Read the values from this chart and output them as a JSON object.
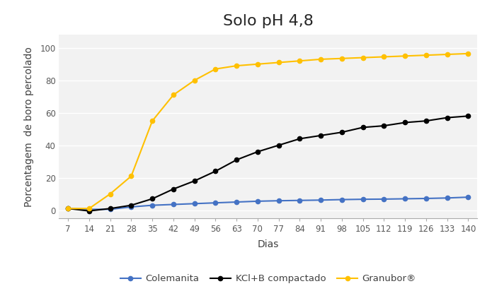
{
  "title": "Solo pH 4,8",
  "xlabel": "Dias",
  "ylabel": "Porcentagem  de boro percolado",
  "x": [
    7,
    14,
    21,
    28,
    35,
    42,
    49,
    56,
    63,
    70,
    77,
    84,
    91,
    98,
    105,
    112,
    119,
    126,
    133,
    140
  ],
  "colemanita": [
    1,
    0.5,
    0.5,
    2,
    3,
    3.5,
    4,
    4.5,
    5,
    5.5,
    5.8,
    6,
    6.2,
    6.5,
    6.7,
    6.8,
    7,
    7.2,
    7.5,
    8
  ],
  "kcl_b": [
    1,
    -0.5,
    1,
    3,
    7,
    13,
    18,
    24,
    31,
    36,
    40,
    44,
    46,
    48,
    51,
    52,
    54,
    55,
    57,
    58
  ],
  "granubor": [
    1,
    1,
    10,
    21,
    55,
    71,
    80,
    87,
    89,
    90,
    91,
    92,
    93,
    93.5,
    94,
    94.5,
    95,
    95.5,
    96,
    96.5
  ],
  "colemanita_color": "#4472C4",
  "kcl_b_color": "#000000",
  "granubor_color": "#FFC000",
  "ylim": [
    -5,
    108
  ],
  "yticks": [
    0,
    20,
    40,
    60,
    80,
    100
  ],
  "xticks": [
    7,
    14,
    21,
    28,
    35,
    42,
    49,
    56,
    63,
    70,
    77,
    84,
    91,
    98,
    105,
    112,
    119,
    126,
    133,
    140
  ],
  "fig_bg": "#ffffff",
  "plot_bg": "#f2f2f2",
  "grid_color": "#ffffff",
  "title_fontsize": 16,
  "label_fontsize": 10,
  "tick_fontsize": 8.5,
  "legend_labels": [
    "Colemanita",
    "KCl+B compactado",
    "Granubor®"
  ]
}
